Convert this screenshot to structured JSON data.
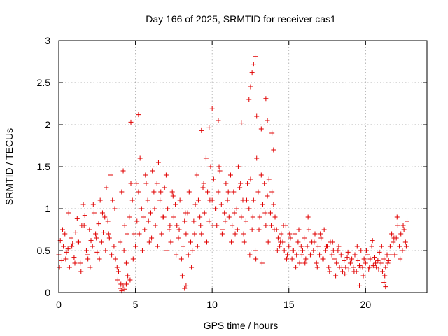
{
  "chart_data": {
    "type": "scatter",
    "title": "Day 166 of 2025, SRMTID for receiver cas1",
    "xlabel": "GPS time / hours",
    "ylabel": "SRMTID / TECUs",
    "xlim": [
      0,
      24
    ],
    "ylim": [
      0,
      3
    ],
    "xticks": [
      "0",
      "5",
      "10",
      "15",
      "20"
    ],
    "yticks": [
      "0",
      "0.5",
      "1",
      "1.5",
      "2",
      "2.5",
      "3"
    ],
    "grid": true,
    "marker": "+",
    "series_color": "#e00000",
    "series": [
      {
        "name": "SRMTID",
        "x": [
          0.0,
          0.1,
          0.2,
          0.3,
          0.4,
          0.5,
          0.6,
          0.7,
          0.8,
          0.9,
          1.0,
          1.1,
          1.2,
          1.3,
          1.4,
          1.5,
          1.6,
          1.7,
          1.8,
          1.9,
          2.0,
          2.1,
          2.2,
          2.3,
          2.4,
          2.5,
          2.6,
          2.7,
          2.8,
          2.9,
          3.0,
          3.1,
          3.2,
          3.3,
          3.4,
          3.5,
          3.6,
          3.7,
          3.8,
          3.9,
          4.0,
          4.1,
          4.2,
          4.3,
          4.4,
          4.5,
          4.6,
          4.7,
          4.8,
          4.9,
          5.0,
          5.1,
          5.2,
          5.3,
          5.4,
          5.5,
          5.6,
          5.7,
          5.8,
          5.9,
          6.0,
          6.1,
          6.2,
          6.3,
          6.4,
          6.5,
          6.6,
          6.7,
          6.8,
          6.9,
          7.0,
          7.1,
          7.2,
          7.3,
          7.4,
          7.5,
          7.6,
          7.7,
          7.8,
          7.9,
          8.0,
          8.1,
          8.2,
          8.3,
          8.4,
          8.5,
          8.6,
          8.7,
          8.8,
          8.9,
          9.0,
          9.1,
          9.2,
          9.3,
          9.4,
          9.5,
          9.6,
          9.7,
          9.8,
          9.9,
          10.0,
          10.1,
          10.2,
          10.3,
          10.4,
          10.5,
          10.6,
          10.7,
          10.8,
          10.9,
          11.0,
          11.1,
          11.2,
          11.3,
          11.4,
          11.5,
          11.6,
          11.7,
          11.8,
          11.9,
          12.0,
          12.1,
          12.2,
          12.3,
          12.4,
          12.5,
          12.6,
          12.7,
          12.8,
          12.9,
          13.0,
          13.1,
          13.2,
          13.3,
          13.4,
          13.5,
          13.6,
          13.7,
          13.8,
          13.9,
          14.0,
          14.1,
          14.2,
          14.3,
          14.4,
          14.5,
          14.6,
          14.7,
          14.8,
          14.9,
          15.0,
          15.1,
          15.2,
          15.3,
          15.4,
          15.5,
          15.6,
          15.7,
          15.8,
          15.9,
          16.0,
          16.1,
          16.2,
          16.3,
          16.4,
          16.5,
          16.6,
          16.7,
          16.8,
          16.9,
          17.0,
          17.1,
          17.2,
          17.3,
          17.4,
          17.5,
          17.6,
          17.7,
          17.8,
          17.9,
          18.0,
          18.1,
          18.2,
          18.3,
          18.4,
          18.5,
          18.6,
          18.7,
          18.8,
          18.9,
          19.0,
          19.1,
          19.2,
          19.3,
          19.4,
          19.5,
          19.6,
          19.7,
          19.8,
          19.9,
          20.0,
          20.1,
          20.2,
          20.3,
          20.4,
          20.5,
          20.6,
          20.7,
          20.8,
          20.9,
          21.0,
          21.1,
          21.2,
          21.3,
          21.4,
          21.5,
          21.6,
          21.7,
          21.8,
          21.9,
          22.0,
          22.1,
          22.2,
          22.3,
          22.4,
          22.5,
          22.6,
          22.7,
          0.05,
          0.25,
          0.45,
          0.65,
          0.85,
          1.05,
          1.25,
          1.45,
          1.65,
          1.85,
          2.05,
          2.25,
          2.45,
          2.65,
          2.85,
          3.05,
          3.25,
          3.45,
          3.65,
          3.85,
          4.05,
          4.25,
          4.45,
          4.65,
          4.85,
          5.05,
          5.25,
          5.45,
          5.65,
          5.85,
          6.05,
          6.25,
          6.45,
          6.65,
          6.85,
          7.05,
          7.25,
          7.45,
          7.65,
          7.85,
          8.05,
          8.25,
          8.45,
          8.65,
          8.85,
          9.05,
          9.25,
          9.45,
          9.65,
          9.85,
          10.05,
          10.25,
          10.45,
          10.65,
          10.85,
          11.05,
          11.25,
          11.45,
          11.65,
          11.85,
          12.05,
          12.25,
          12.45,
          12.65,
          12.85,
          13.05,
          13.25,
          13.45,
          13.65,
          13.85,
          14.05,
          14.25,
          14.45,
          14.65,
          14.85,
          15.05,
          15.25,
          15.45,
          15.65,
          15.85,
          16.05,
          16.25,
          16.45,
          16.65,
          16.85,
          17.05,
          17.25,
          17.45,
          17.65,
          17.85,
          18.05,
          18.25,
          18.45,
          18.65,
          18.85,
          19.05,
          19.25,
          19.45,
          19.65,
          19.85,
          20.05,
          20.25,
          20.45,
          20.65,
          20.85,
          21.05,
          21.25,
          21.45,
          21.65,
          21.85,
          22.05,
          22.25,
          22.45,
          22.65,
          4.7,
          5.2,
          9.3,
          9.8,
          10.0,
          10.4,
          11.9,
          12.4,
          12.5,
          12.6,
          12.7,
          12.8,
          12.9,
          13.2,
          13.5,
          13.6,
          13.9,
          14.0,
          4.0,
          4.1,
          4.2,
          4.3,
          4.4,
          8.2,
          8.3,
          19.6,
          21.2,
          21.3
        ],
        "y": [
          0.45,
          0.62,
          0.38,
          0.55,
          0.7,
          0.48,
          0.52,
          0.3,
          0.65,
          0.58,
          0.42,
          0.72,
          0.88,
          0.6,
          0.35,
          0.8,
          1.05,
          0.92,
          0.5,
          0.4,
          0.75,
          0.62,
          0.55,
          0.95,
          0.7,
          0.48,
          0.82,
          1.1,
          0.6,
          0.72,
          0.9,
          1.25,
          0.85,
          0.65,
          1.4,
          1.1,
          0.55,
          0.4,
          0.3,
          0.25,
          0.6,
          1.2,
          1.45,
          0.8,
          0.35,
          0.2,
          0.9,
          1.3,
          1.1,
          0.7,
          0.55,
          0.85,
          1.2,
          1.6,
          1.0,
          0.9,
          0.75,
          1.3,
          1.1,
          0.6,
          0.95,
          1.45,
          1.2,
          0.8,
          1.3,
          1.55,
          1.1,
          0.7,
          0.9,
          1.25,
          1.4,
          1.0,
          0.75,
          0.6,
          1.2,
          0.9,
          1.05,
          0.8,
          0.65,
          1.1,
          0.4,
          0.55,
          0.85,
          0.7,
          0.95,
          1.2,
          0.6,
          0.5,
          0.85,
          1.05,
          1.4,
          1.1,
          0.9,
          0.7,
          1.25,
          0.95,
          1.6,
          1.2,
          0.85,
          1.5,
          1.1,
          1.35,
          1.0,
          0.8,
          1.2,
          1.45,
          1.05,
          0.75,
          0.95,
          1.3,
          1.1,
          0.9,
          1.4,
          0.8,
          1.2,
          0.7,
          1.0,
          1.5,
          1.25,
          0.9,
          1.1,
          0.6,
          0.85,
          1.3,
          1.0,
          1.35,
          0.75,
          1.1,
          0.5,
          1.6,
          1.2,
          0.9,
          1.4,
          1.05,
          1.3,
          0.8,
          1.15,
          1.35,
          0.95,
          1.2,
          1.05,
          0.9,
          0.75,
          0.65,
          0.55,
          0.7,
          0.6,
          0.5,
          0.8,
          0.45,
          0.55,
          0.65,
          0.4,
          0.5,
          0.7,
          0.45,
          0.6,
          0.35,
          0.55,
          0.5,
          0.65,
          0.4,
          0.55,
          0.75,
          0.45,
          0.6,
          0.5,
          0.7,
          0.35,
          0.55,
          0.45,
          0.65,
          0.4,
          0.75,
          0.5,
          0.55,
          0.3,
          0.6,
          0.45,
          0.5,
          0.4,
          0.35,
          0.5,
          0.3,
          0.45,
          0.25,
          0.38,
          0.3,
          0.42,
          0.28,
          0.35,
          0.4,
          0.3,
          0.45,
          0.25,
          0.38,
          0.32,
          0.5,
          0.3,
          0.4,
          0.35,
          0.45,
          0.28,
          0.4,
          0.55,
          0.32,
          0.42,
          0.3,
          0.38,
          0.48,
          0.35,
          0.25,
          0.4,
          0.3,
          0.45,
          0.38,
          0.55,
          0.7,
          0.6,
          0.45,
          0.65,
          0.8,
          0.55,
          0.7,
          0.5,
          0.75,
          0.6,
          0.85,
          0.3,
          0.75,
          0.4,
          0.95,
          0.55,
          0.35,
          0.6,
          0.25,
          0.8,
          0.45,
          0.3,
          1.05,
          0.65,
          0.4,
          0.95,
          0.5,
          0.7,
          0.45,
          1.0,
          0.15,
          0.1,
          0.5,
          0.7,
          0.15,
          0.4,
          1.3,
          0.7,
          0.5,
          1.4,
          0.85,
          0.65,
          1.0,
          0.55,
          1.2,
          0.9,
          0.5,
          0.8,
          1.15,
          0.45,
          0.75,
          0.2,
          0.95,
          0.45,
          0.3,
          0.7,
          0.55,
          0.8,
          1.3,
          0.6,
          1.1,
          0.8,
          1.0,
          1.5,
          0.7,
          0.85,
          1.2,
          0.6,
          0.95,
          0.75,
          1.3,
          0.7,
          1.1,
          0.45,
          0.9,
          0.4,
          0.75,
          0.35,
          0.95,
          0.6,
          0.8,
          0.75,
          0.5,
          0.6,
          0.8,
          0.4,
          0.7,
          0.5,
          0.3,
          0.75,
          0.45,
          0.35,
          0.9,
          0.45,
          0.6,
          0.3,
          0.7,
          0.4,
          0.55,
          0.25,
          0.6,
          0.2,
          0.55,
          0.3,
          0.22,
          0.48,
          0.35,
          0.25,
          0.55,
          0.3,
          0.2,
          0.5,
          0.3,
          0.62,
          0.35,
          0.28,
          0.55,
          0.2,
          0.35,
          0.45,
          0.65,
          0.9,
          0.4,
          0.8,
          0.55,
          2.03,
          2.12,
          1.93,
          1.97,
          2.19,
          2.05,
          2.02,
          2.3,
          2.45,
          2.62,
          2.72,
          2.81,
          2.1,
          1.95,
          2.31,
          2.05,
          1.9,
          1.7,
          0.05,
          0.02,
          0.08,
          0.04,
          0.1,
          0.05,
          0.08,
          0.08,
          0.12,
          0.07
        ]
      }
    ]
  }
}
